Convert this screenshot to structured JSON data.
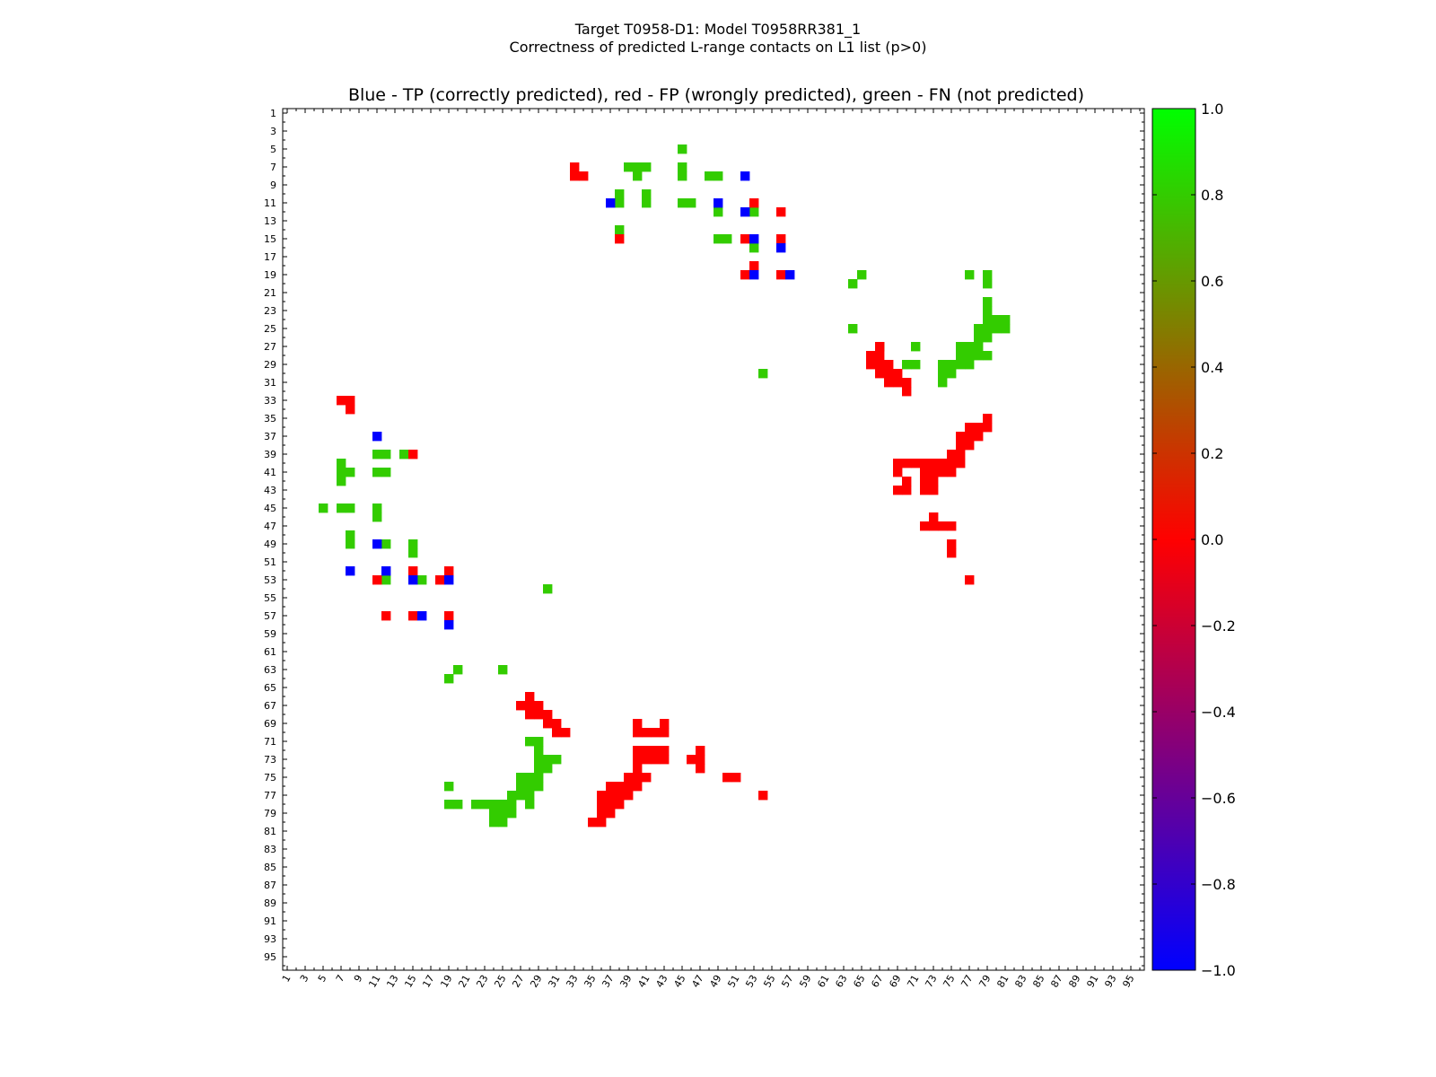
{
  "figure": {
    "title_line1": "Target T0958-D1: Model T0958RR381_1",
    "title_line2": "Correctness of predicted L-range contacts on L1 list (p>0)"
  },
  "chart_data": {
    "type": "heatmap",
    "title": "Blue - TP (correctly predicted), red - FP (wrongly predicted), green - FN (not predicted)",
    "xlabel": "",
    "ylabel": "",
    "xlim": [
      1,
      96
    ],
    "ylim": [
      1,
      96
    ],
    "y_axis": "inverted",
    "grid": false,
    "x_tick_labels": [
      "1",
      "3",
      "5",
      "7",
      "9",
      "11",
      "13",
      "15",
      "17",
      "19",
      "21",
      "23",
      "25",
      "27",
      "29",
      "31",
      "33",
      "35",
      "37",
      "39",
      "41",
      "43",
      "45",
      "47",
      "49",
      "51",
      "53",
      "55",
      "57",
      "59",
      "61",
      "63",
      "65",
      "67",
      "69",
      "71",
      "73",
      "75",
      "77",
      "79",
      "81",
      "83",
      "85",
      "87",
      "89",
      "91",
      "93",
      "95"
    ],
    "y_tick_labels": [
      "1",
      "3",
      "5",
      "7",
      "9",
      "11",
      "13",
      "15",
      "17",
      "19",
      "21",
      "23",
      "25",
      "27",
      "29",
      "31",
      "33",
      "35",
      "37",
      "39",
      "41",
      "43",
      "45",
      "47",
      "49",
      "51",
      "53",
      "55",
      "57",
      "59",
      "61",
      "63",
      "65",
      "67",
      "69",
      "71",
      "73",
      "75",
      "77",
      "79",
      "81",
      "83",
      "85",
      "87",
      "89",
      "91",
      "93",
      "95"
    ],
    "colorbar": {
      "min": -1.0,
      "max": 1.0,
      "tick_labels": [
        "1.0",
        "0.8",
        "0.6",
        "0.4",
        "0.2",
        "0.0",
        "−0.2",
        "−0.4",
        "−0.6",
        "−0.8",
        "−1.0"
      ],
      "tick_values": [
        1.0,
        0.8,
        0.6,
        0.4,
        0.2,
        0.0,
        -0.2,
        -0.4,
        -0.6,
        -0.8,
        -1.0
      ],
      "colors": [
        "#0000ff",
        "#ff0000",
        "#00ff00"
      ]
    },
    "categories": {
      "TP": {
        "value": -1.0,
        "color": "#0000ff"
      },
      "FP": {
        "value": 0.0,
        "color": "#ff0000"
      },
      "FN": {
        "value": 0.8,
        "color": "#33cc00"
      }
    },
    "cells": {
      "FN": [
        [
          45,
          5
        ],
        [
          39,
          7
        ],
        [
          40,
          7
        ],
        [
          41,
          7
        ],
        [
          45,
          7
        ],
        [
          40,
          8
        ],
        [
          45,
          8
        ],
        [
          48,
          8
        ],
        [
          49,
          8
        ],
        [
          38,
          10
        ],
        [
          41,
          10
        ],
        [
          38,
          11
        ],
        [
          41,
          11
        ],
        [
          45,
          11
        ],
        [
          46,
          11
        ],
        [
          49,
          12
        ],
        [
          53,
          12
        ],
        [
          38,
          14
        ],
        [
          49,
          15
        ],
        [
          50,
          15
        ],
        [
          53,
          16
        ],
        [
          65,
          19
        ],
        [
          77,
          19
        ],
        [
          79,
          19
        ],
        [
          64,
          20
        ],
        [
          79,
          20
        ],
        [
          79,
          22
        ],
        [
          79,
          23
        ],
        [
          79,
          24
        ],
        [
          80,
          24
        ],
        [
          81,
          24
        ],
        [
          64,
          25
        ],
        [
          78,
          25
        ],
        [
          79,
          25
        ],
        [
          80,
          25
        ],
        [
          81,
          25
        ],
        [
          78,
          26
        ],
        [
          79,
          26
        ],
        [
          67,
          27
        ],
        [
          71,
          27
        ],
        [
          76,
          27
        ],
        [
          77,
          27
        ],
        [
          78,
          27
        ],
        [
          76,
          28
        ],
        [
          77,
          28
        ],
        [
          78,
          28
        ],
        [
          79,
          28
        ],
        [
          70,
          29
        ],
        [
          71,
          29
        ],
        [
          74,
          29
        ],
        [
          75,
          29
        ],
        [
          76,
          29
        ],
        [
          77,
          29
        ],
        [
          54,
          30
        ],
        [
          74,
          30
        ],
        [
          75,
          30
        ],
        [
          74,
          31
        ],
        [
          11,
          39
        ],
        [
          12,
          39
        ],
        [
          14,
          39
        ],
        [
          7,
          40
        ],
        [
          7,
          41
        ],
        [
          8,
          41
        ],
        [
          11,
          41
        ],
        [
          12,
          41
        ],
        [
          7,
          42
        ],
        [
          5,
          45
        ],
        [
          7,
          45
        ],
        [
          8,
          45
        ],
        [
          11,
          45
        ],
        [
          11,
          46
        ],
        [
          8,
          48
        ],
        [
          8,
          49
        ],
        [
          12,
          49
        ],
        [
          15,
          49
        ],
        [
          15,
          50
        ],
        [
          12,
          53
        ],
        [
          16,
          53
        ],
        [
          30,
          54
        ],
        [
          20,
          63
        ],
        [
          25,
          63
        ],
        [
          19,
          64
        ],
        [
          28,
          67
        ],
        [
          28,
          71
        ],
        [
          29,
          71
        ],
        [
          29,
          72
        ],
        [
          29,
          73
        ],
        [
          30,
          73
        ],
        [
          31,
          73
        ],
        [
          29,
          74
        ],
        [
          30,
          74
        ],
        [
          27,
          75
        ],
        [
          28,
          75
        ],
        [
          29,
          75
        ],
        [
          19,
          76
        ],
        [
          27,
          76
        ],
        [
          28,
          76
        ],
        [
          29,
          76
        ],
        [
          26,
          77
        ],
        [
          27,
          77
        ],
        [
          28,
          77
        ],
        [
          19,
          78
        ],
        [
          20,
          78
        ],
        [
          22,
          78
        ],
        [
          23,
          78
        ],
        [
          24,
          78
        ],
        [
          25,
          78
        ],
        [
          26,
          78
        ],
        [
          28,
          78
        ],
        [
          24,
          79
        ],
        [
          25,
          79
        ],
        [
          26,
          79
        ],
        [
          24,
          80
        ],
        [
          25,
          80
        ]
      ],
      "FP": [
        [
          33,
          7
        ],
        [
          33,
          8
        ],
        [
          34,
          8
        ],
        [
          53,
          11
        ],
        [
          56,
          12
        ],
        [
          38,
          15
        ],
        [
          52,
          15
        ],
        [
          56,
          15
        ],
        [
          53,
          18
        ],
        [
          52,
          19
        ],
        [
          56,
          19
        ],
        [
          67,
          27
        ],
        [
          66,
          28
        ],
        [
          67,
          28
        ],
        [
          66,
          29
        ],
        [
          67,
          29
        ],
        [
          68,
          29
        ],
        [
          67,
          30
        ],
        [
          68,
          30
        ],
        [
          69,
          30
        ],
        [
          68,
          31
        ],
        [
          69,
          31
        ],
        [
          70,
          31
        ],
        [
          70,
          32
        ],
        [
          7,
          33
        ],
        [
          8,
          33
        ],
        [
          8,
          34
        ],
        [
          79,
          35
        ],
        [
          77,
          36
        ],
        [
          78,
          36
        ],
        [
          79,
          36
        ],
        [
          76,
          37
        ],
        [
          77,
          37
        ],
        [
          78,
          37
        ],
        [
          76,
          38
        ],
        [
          77,
          38
        ],
        [
          15,
          39
        ],
        [
          75,
          39
        ],
        [
          76,
          39
        ],
        [
          69,
          40
        ],
        [
          70,
          40
        ],
        [
          71,
          40
        ],
        [
          72,
          40
        ],
        [
          73,
          40
        ],
        [
          74,
          40
        ],
        [
          75,
          40
        ],
        [
          76,
          40
        ],
        [
          69,
          41
        ],
        [
          72,
          41
        ],
        [
          73,
          41
        ],
        [
          74,
          41
        ],
        [
          75,
          41
        ],
        [
          70,
          42
        ],
        [
          72,
          42
        ],
        [
          73,
          42
        ],
        [
          69,
          43
        ],
        [
          70,
          43
        ],
        [
          72,
          43
        ],
        [
          73,
          43
        ],
        [
          73,
          46
        ],
        [
          72,
          47
        ],
        [
          73,
          47
        ],
        [
          74,
          47
        ],
        [
          75,
          47
        ],
        [
          75,
          49
        ],
        [
          75,
          50
        ],
        [
          15,
          52
        ],
        [
          19,
          52
        ],
        [
          11,
          53
        ],
        [
          18,
          53
        ],
        [
          77,
          53
        ],
        [
          12,
          57
        ],
        [
          15,
          57
        ],
        [
          19,
          57
        ],
        [
          28,
          66
        ],
        [
          27,
          67
        ],
        [
          28,
          67
        ],
        [
          29,
          67
        ],
        [
          28,
          68
        ],
        [
          29,
          68
        ],
        [
          30,
          68
        ],
        [
          30,
          69
        ],
        [
          31,
          69
        ],
        [
          31,
          70
        ],
        [
          32,
          70
        ],
        [
          40,
          69
        ],
        [
          43,
          69
        ],
        [
          40,
          70
        ],
        [
          41,
          70
        ],
        [
          42,
          70
        ],
        [
          43,
          70
        ],
        [
          40,
          72
        ],
        [
          41,
          72
        ],
        [
          42,
          72
        ],
        [
          43,
          72
        ],
        [
          47,
          72
        ],
        [
          40,
          73
        ],
        [
          41,
          73
        ],
        [
          42,
          73
        ],
        [
          43,
          73
        ],
        [
          46,
          73
        ],
        [
          47,
          73
        ],
        [
          40,
          74
        ],
        [
          47,
          74
        ],
        [
          39,
          75
        ],
        [
          40,
          75
        ],
        [
          41,
          75
        ],
        [
          50,
          75
        ],
        [
          51,
          75
        ],
        [
          37,
          76
        ],
        [
          38,
          76
        ],
        [
          39,
          76
        ],
        [
          40,
          76
        ],
        [
          36,
          77
        ],
        [
          37,
          77
        ],
        [
          38,
          77
        ],
        [
          39,
          77
        ],
        [
          54,
          77
        ],
        [
          36,
          78
        ],
        [
          37,
          78
        ],
        [
          38,
          78
        ],
        [
          36,
          79
        ],
        [
          37,
          79
        ],
        [
          35,
          80
        ],
        [
          36,
          80
        ]
      ],
      "TP": [
        [
          52,
          8
        ],
        [
          37,
          11
        ],
        [
          49,
          11
        ],
        [
          52,
          12
        ],
        [
          53,
          15
        ],
        [
          56,
          16
        ],
        [
          53,
          19
        ],
        [
          57,
          19
        ],
        [
          11,
          37
        ],
        [
          11,
          49
        ],
        [
          8,
          52
        ],
        [
          12,
          52
        ],
        [
          15,
          53
        ],
        [
          19,
          53
        ],
        [
          16,
          57
        ],
        [
          19,
          58
        ]
      ]
    }
  }
}
